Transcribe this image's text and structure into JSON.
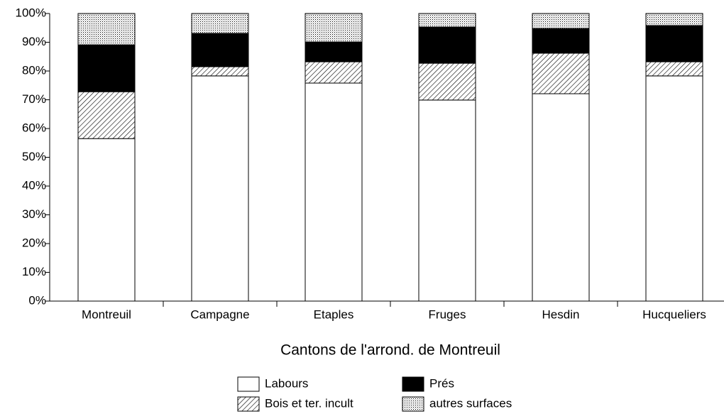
{
  "chart_data": {
    "type": "stacked_bar",
    "x_label": "Cantons de l'arrond. de Montreuil",
    "categories": [
      "Montreuil",
      "Campagne",
      "Etaples",
      "Fruges",
      "Hesdin",
      "Hucqueliers"
    ],
    "series": [
      {
        "name": "Labours",
        "color": "#ffffff",
        "pattern": "solid",
        "values": [
          56.5,
          78.3,
          75.8,
          69.9,
          72.1,
          78.3
        ]
      },
      {
        "name": "Bois et ter. incult",
        "color": "#000000",
        "pattern": "hatch",
        "values": [
          16.3,
          3.2,
          7.4,
          12.8,
          14.1,
          4.9
        ]
      },
      {
        "name": "Prés",
        "color": "#000000",
        "pattern": "solid",
        "values": [
          16.3,
          11.6,
          6.9,
          12.6,
          8.6,
          12.6
        ]
      },
      {
        "name": "autres surfaces",
        "color": "#000000",
        "pattern": "dots",
        "values": [
          10.9,
          6.9,
          9.9,
          4.7,
          5.2,
          4.2
        ]
      }
    ],
    "ylim": [
      0,
      100
    ],
    "yticks": [
      {
        "value": 0,
        "label": "0%"
      },
      {
        "value": 10,
        "label": "10%"
      },
      {
        "value": 20,
        "label": "20%"
      },
      {
        "value": 30,
        "label": "30%"
      },
      {
        "value": 40,
        "label": "40%"
      },
      {
        "value": 50,
        "label": "50%"
      },
      {
        "value": 60,
        "label": "60%"
      },
      {
        "value": 70,
        "label": "70%"
      },
      {
        "value": 80,
        "label": "80%"
      },
      {
        "value": 90,
        "label": "90%"
      },
      {
        "value": 100,
        "label": "100%"
      }
    ],
    "legend": "bottom"
  }
}
